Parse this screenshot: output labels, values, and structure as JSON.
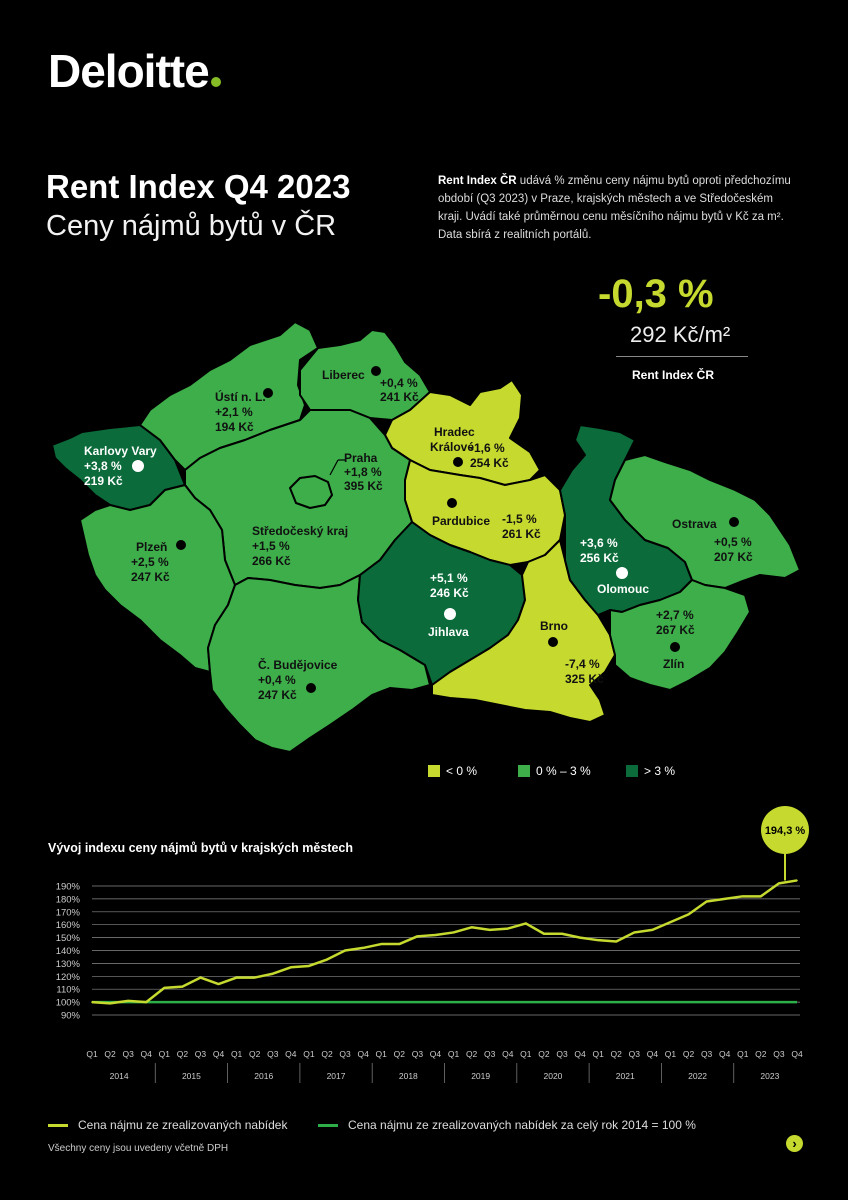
{
  "brand": {
    "logo_text": "Deloitte",
    "accent": "#86bc25"
  },
  "header": {
    "title": "Rent Index Q4 2023",
    "subtitle": "Ceny nájmů bytů v ČR",
    "description_bold": "Rent Index ČR",
    "description": "udává % změnu ceny nájmu bytů oproti předchozímu období (Q3 2023) v Praze, krajských městech a ve Středočeském kraji. Uvádí také průměrnou cenu měsíčního nájmu bytů v Kč za m². Data sbírá z realitních portálů."
  },
  "summary": {
    "change": "-0,3 %",
    "price": "292 Kč/m²",
    "label": "Rent Index ČR"
  },
  "colors": {
    "lt0": "#c5d92f",
    "mid": "#3dae4a",
    "gt3": "#0b6b3a",
    "index_line": "#c5d92f",
    "base_line": "#2eae48"
  },
  "regions": [
    {
      "name": "Karlovy Vary",
      "change": "+3,8 %",
      "price": "219 Kč",
      "category": "gt3"
    },
    {
      "name": "Ústí n. L.",
      "change": "+2,1 %",
      "price": "194 Kč",
      "category": "mid"
    },
    {
      "name": "Liberec",
      "change": "+0,4 %",
      "price": "241 Kč",
      "category": "mid"
    },
    {
      "name": "Hradec Králové",
      "change": "-1,6 %",
      "price": "254 Kč",
      "category": "lt0"
    },
    {
      "name": "Praha",
      "change": "+1,8 %",
      "price": "395 Kč",
      "category": "mid"
    },
    {
      "name": "Pardubice",
      "change": "-1,5 %",
      "price": "261 Kč",
      "category": "lt0"
    },
    {
      "name": "Plzeň",
      "change": "+2,5 %",
      "price": "247 Kč",
      "category": "mid"
    },
    {
      "name": "Středočeský kraj",
      "change": "+1,5 %",
      "price": "266 Kč",
      "category": "mid"
    },
    {
      "name": "Jihlava",
      "change": "+5,1 %",
      "price": "246 Kč",
      "category": "gt3"
    },
    {
      "name": "Olomouc",
      "change": "+3,6 %",
      "price": "256 Kč",
      "category": "gt3"
    },
    {
      "name": "Ostrava",
      "change": "+0,5 %",
      "price": "207 Kč",
      "category": "mid"
    },
    {
      "name": "Brno",
      "change": "-7,4 %",
      "price": "325 Kč",
      "category": "lt0"
    },
    {
      "name": "Zlín",
      "change": "+2,7 %",
      "price": "267 Kč",
      "category": "mid"
    },
    {
      "name": "Č. Budějovice",
      "change": "+0,4 %",
      "price": "247 Kč",
      "category": "mid"
    }
  ],
  "legend": [
    {
      "label": "< 0 %",
      "category": "lt0"
    },
    {
      "label": "0 % – 3 %",
      "category": "mid"
    },
    {
      "label": "> 3 %",
      "category": "gt3"
    }
  ],
  "chart_title": "Vývoj indexu ceny nájmů bytů v krajských městech",
  "chart_data": {
    "type": "line",
    "title": "Vývoj indexu ceny nájmů bytů v krajských městech",
    "quarters": [
      "Q1",
      "Q2",
      "Q3",
      "Q4"
    ],
    "years": [
      "2014",
      "2015",
      "2016",
      "2017",
      "2018",
      "2019",
      "2020",
      "2021",
      "2022",
      "2023"
    ],
    "ylim": [
      90,
      190
    ],
    "yticks": [
      "90%",
      "100%",
      "110%",
      "120%",
      "130%",
      "140%",
      "150%",
      "160%",
      "170%",
      "180%",
      "190%"
    ],
    "series": [
      {
        "name": "Cena nájmu ze zrealizovaných nabídek",
        "values": [
          100,
          99,
          101,
          100,
          111,
          112,
          119,
          114,
          119,
          119,
          122,
          127,
          128,
          133,
          140,
          142,
          145,
          145,
          151,
          152,
          154,
          158,
          156,
          157,
          161,
          153,
          153,
          150,
          148,
          147,
          154,
          156,
          162,
          168,
          178,
          180,
          182,
          182,
          192,
          194.3
        ]
      },
      {
        "name": "Cena nájmu ze zrealizovaných nabídek za celý rok 2014 = 100 %",
        "values": [
          100,
          100,
          100,
          100,
          100,
          100,
          100,
          100,
          100,
          100,
          100,
          100,
          100,
          100,
          100,
          100,
          100,
          100,
          100,
          100,
          100,
          100,
          100,
          100,
          100,
          100,
          100,
          100,
          100,
          100,
          100,
          100,
          100,
          100,
          100,
          100,
          100,
          100,
          100,
          100
        ]
      }
    ],
    "annotation": "194,3 %",
    "grid": true
  },
  "footer": {
    "legend1": "Cena nájmu ze zrealizovaných nabídek",
    "legend2": "Cena nájmu ze zrealizovaných nabídek za celý rok 2014 = 100 %",
    "note": "Všechny ceny jsou uvedeny včetně DPH",
    "next_icon": "chevron-right-icon"
  }
}
